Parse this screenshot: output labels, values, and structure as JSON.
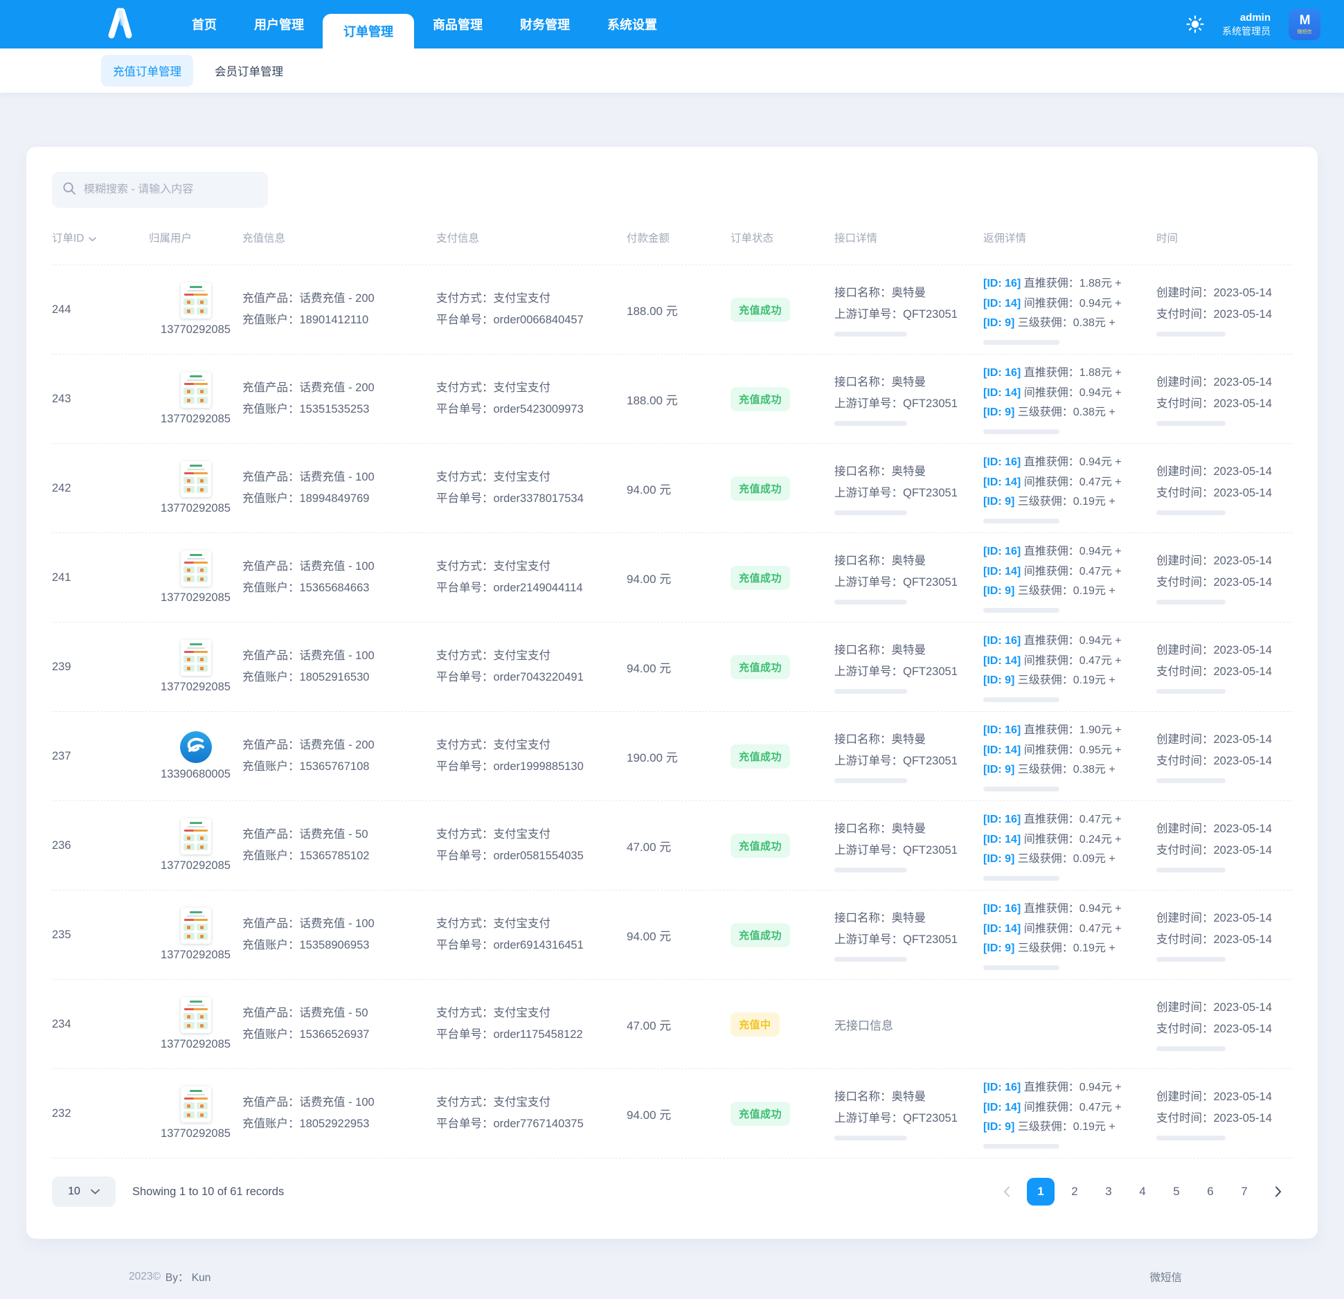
{
  "nav": {
    "items": [
      "首页",
      "用户管理",
      "订单管理",
      "商品管理",
      "财务管理",
      "系统设置"
    ],
    "active_index": 2,
    "user": {
      "name": "admin",
      "role": "系统管理员",
      "avatar_m": "M",
      "avatar_text": "微短信"
    }
  },
  "subnav": {
    "items": [
      "充值订单管理",
      "会员订单管理"
    ],
    "active_index": 0
  },
  "search": {
    "placeholder": "模糊搜索 - 请输入内容"
  },
  "table": {
    "columns": [
      "订单ID",
      "归属用户",
      "充值信息",
      "支付信息",
      "付款金额",
      "订单状态",
      "接口详情",
      "返佣详情",
      "时间"
    ],
    "labels": {
      "product": "充值产品：",
      "account": "充值账户：",
      "pay_method": "支付方式：",
      "platform": "平台单号：",
      "api_name": "接口名称：",
      "api_order": "上游订单号：",
      "created": "创建时间：",
      "paid": "支付时间："
    },
    "rows": [
      {
        "id": "244",
        "avatar": "page-thumb",
        "user": "13770292085",
        "product": "话费充值 - 200",
        "account": "18901412110",
        "pay_method": "支付宝支付",
        "platform_no": "order0066840457",
        "amount": "188.00 元",
        "status": "充值成功",
        "status_type": "success",
        "api_name": "奥特曼",
        "api_order": "QFT23051",
        "commissions": [
          {
            "id": "[ID: 16]",
            "text": "直推获佣：1.88元 +"
          },
          {
            "id": "[ID: 14]",
            "text": "间推获佣：0.94元 +"
          },
          {
            "id": "[ID: 9]",
            "text": "三级获佣：0.38元 +"
          }
        ],
        "created": "2023-05-14",
        "paid": "2023-05-14"
      },
      {
        "id": "243",
        "avatar": "page-thumb",
        "user": "13770292085",
        "product": "话费充值 - 200",
        "account": "15351535253",
        "pay_method": "支付宝支付",
        "platform_no": "order5423009973",
        "amount": "188.00 元",
        "status": "充值成功",
        "status_type": "success",
        "api_name": "奥特曼",
        "api_order": "QFT23051",
        "commissions": [
          {
            "id": "[ID: 16]",
            "text": "直推获佣：1.88元 +"
          },
          {
            "id": "[ID: 14]",
            "text": "间推获佣：0.94元 +"
          },
          {
            "id": "[ID: 9]",
            "text": "三级获佣：0.38元 +"
          }
        ],
        "created": "2023-05-14",
        "paid": "2023-05-14"
      },
      {
        "id": "242",
        "avatar": "page-thumb",
        "user": "13770292085",
        "product": "话费充值 - 100",
        "account": "18994849769",
        "pay_method": "支付宝支付",
        "platform_no": "order3378017534",
        "amount": "94.00 元",
        "status": "充值成功",
        "status_type": "success",
        "api_name": "奥特曼",
        "api_order": "QFT23051",
        "commissions": [
          {
            "id": "[ID: 16]",
            "text": "直推获佣：0.94元 +"
          },
          {
            "id": "[ID: 14]",
            "text": "间推获佣：0.47元 +"
          },
          {
            "id": "[ID: 9]",
            "text": "三级获佣：0.19元 +"
          }
        ],
        "created": "2023-05-14",
        "paid": "2023-05-14"
      },
      {
        "id": "241",
        "avatar": "page-thumb",
        "user": "13770292085",
        "product": "话费充值 - 100",
        "account": "15365684663",
        "pay_method": "支付宝支付",
        "platform_no": "order2149044114",
        "amount": "94.00 元",
        "status": "充值成功",
        "status_type": "success",
        "api_name": "奥特曼",
        "api_order": "QFT23051",
        "commissions": [
          {
            "id": "[ID: 16]",
            "text": "直推获佣：0.94元 +"
          },
          {
            "id": "[ID: 14]",
            "text": "间推获佣：0.47元 +"
          },
          {
            "id": "[ID: 9]",
            "text": "三级获佣：0.19元 +"
          }
        ],
        "created": "2023-05-14",
        "paid": "2023-05-14"
      },
      {
        "id": "239",
        "avatar": "page-thumb",
        "user": "13770292085",
        "product": "话费充值 - 100",
        "account": "18052916530",
        "pay_method": "支付宝支付",
        "platform_no": "order7043220491",
        "amount": "94.00 元",
        "status": "充值成功",
        "status_type": "success",
        "api_name": "奥特曼",
        "api_order": "QFT23051",
        "commissions": [
          {
            "id": "[ID: 16]",
            "text": "直推获佣：0.94元 +"
          },
          {
            "id": "[ID: 14]",
            "text": "间推获佣：0.47元 +"
          },
          {
            "id": "[ID: 9]",
            "text": "三级获佣：0.19元 +"
          }
        ],
        "created": "2023-05-14",
        "paid": "2023-05-14"
      },
      {
        "id": "237",
        "avatar": "telecom",
        "user": "13390680005",
        "product": "话费充值 - 200",
        "account": "15365767108",
        "pay_method": "支付宝支付",
        "platform_no": "order1999885130",
        "amount": "190.00 元",
        "status": "充值成功",
        "status_type": "success",
        "api_name": "奥特曼",
        "api_order": "QFT23051",
        "commissions": [
          {
            "id": "[ID: 16]",
            "text": "直推获佣：1.90元 +"
          },
          {
            "id": "[ID: 14]",
            "text": "间推获佣：0.95元 +"
          },
          {
            "id": "[ID: 9]",
            "text": "三级获佣：0.38元 +"
          }
        ],
        "created": "2023-05-14",
        "paid": "2023-05-14"
      },
      {
        "id": "236",
        "avatar": "page-thumb",
        "user": "13770292085",
        "product": "话费充值 - 50",
        "account": "15365785102",
        "pay_method": "支付宝支付",
        "platform_no": "order0581554035",
        "amount": "47.00 元",
        "status": "充值成功",
        "status_type": "success",
        "api_name": "奥特曼",
        "api_order": "QFT23051",
        "commissions": [
          {
            "id": "[ID: 16]",
            "text": "直推获佣：0.47元 +"
          },
          {
            "id": "[ID: 14]",
            "text": "间推获佣：0.24元 +"
          },
          {
            "id": "[ID: 9]",
            "text": "三级获佣：0.09元 +"
          }
        ],
        "created": "2023-05-14",
        "paid": "2023-05-14"
      },
      {
        "id": "235",
        "avatar": "page-thumb",
        "user": "13770292085",
        "product": "话费充值 - 100",
        "account": "15358906953",
        "pay_method": "支付宝支付",
        "platform_no": "order6914316451",
        "amount": "94.00 元",
        "status": "充值成功",
        "status_type": "success",
        "api_name": "奥特曼",
        "api_order": "QFT23051",
        "commissions": [
          {
            "id": "[ID: 16]",
            "text": "直推获佣：0.94元 +"
          },
          {
            "id": "[ID: 14]",
            "text": "间推获佣：0.47元 +"
          },
          {
            "id": "[ID: 9]",
            "text": "三级获佣：0.19元 +"
          }
        ],
        "created": "2023-05-14",
        "paid": "2023-05-14"
      },
      {
        "id": "234",
        "avatar": "page-thumb",
        "user": "13770292085",
        "product": "话费充值 - 50",
        "account": "15366526937",
        "pay_method": "支付宝支付",
        "platform_no": "order1175458122",
        "amount": "47.00 元",
        "status": "充值中",
        "status_type": "pending",
        "no_api": "无接口信息",
        "commissions": [],
        "created": "2023-05-14",
        "paid": "2023-05-14"
      },
      {
        "id": "232",
        "avatar": "page-thumb",
        "user": "13770292085",
        "product": "话费充值 - 100",
        "account": "18052922953",
        "pay_method": "支付宝支付",
        "platform_no": "order7767140375",
        "amount": "94.00 元",
        "status": "充值成功",
        "status_type": "success",
        "api_name": "奥特曼",
        "api_order": "QFT23051",
        "commissions": [
          {
            "id": "[ID: 16]",
            "text": "直推获佣：0.94元 +"
          },
          {
            "id": "[ID: 14]",
            "text": "间推获佣：0.47元 +"
          },
          {
            "id": "[ID: 9]",
            "text": "三级获佣：0.19元 +"
          }
        ],
        "created": "2023-05-14",
        "paid": "2023-05-14"
      }
    ]
  },
  "pagination": {
    "page_size": "10",
    "summary": "Showing 1 to 10 of 61 records",
    "pages": [
      "1",
      "2",
      "3",
      "4",
      "5",
      "6",
      "7"
    ],
    "active_page": "1"
  },
  "footer": {
    "copyright": "2023©",
    "by": "By： Kun",
    "right": "微短信"
  }
}
